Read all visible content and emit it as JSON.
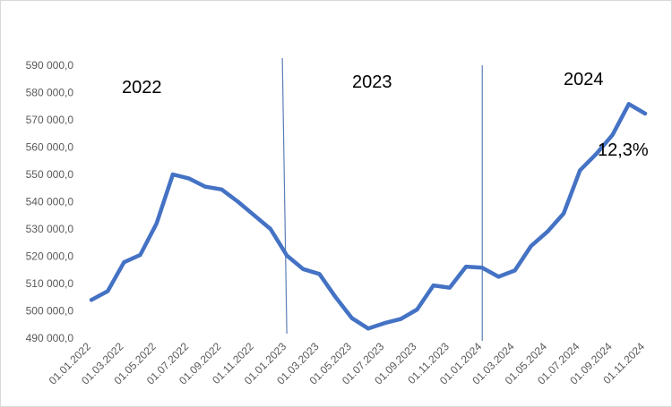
{
  "chart_data": {
    "type": "line",
    "title": "",
    "xlabel": "",
    "ylabel": "",
    "ylim": [
      490000,
      590000
    ],
    "y_ticks": [
      490000,
      500000,
      510000,
      520000,
      530000,
      540000,
      550000,
      560000,
      570000,
      580000,
      590000
    ],
    "y_tick_labels": [
      "490 000,0",
      "500 000,0",
      "510 000,0",
      "520 000,0",
      "530 000,0",
      "540 000,0",
      "550 000,0",
      "560 000,0",
      "570 000,0",
      "580 000,0",
      "590 000,0"
    ],
    "x_tick_labels": [
      "01.01.2022",
      "01.03.2022",
      "01.05.2022",
      "01.07.2022",
      "01.09.2022",
      "01.11.2022",
      "01.01.2023",
      "01.03.2023",
      "01.05.2023",
      "01.07.2023",
      "01.09.2023",
      "01.11.2023",
      "01.01.2024",
      "01.03.2024",
      "01.05.2024",
      "01.07.2024",
      "01.09.2024",
      "01.11.2024"
    ],
    "grid": false,
    "legend": "none",
    "series": [
      {
        "color": "#4472C4",
        "x": [
          "01.01.2022",
          "01.02.2022",
          "01.03.2022",
          "01.04.2022",
          "01.05.2022",
          "01.06.2022",
          "01.07.2022",
          "01.08.2022",
          "01.09.2022",
          "01.10.2022",
          "01.11.2022",
          "01.12.2022",
          "01.01.2023",
          "01.02.2023",
          "01.03.2023",
          "01.04.2023",
          "01.05.2023",
          "01.06.2023",
          "01.07.2023",
          "01.08.2023",
          "01.09.2023",
          "01.10.2023",
          "01.11.2023",
          "01.12.2023",
          "01.01.2024",
          "01.02.2024",
          "01.03.2024",
          "01.04.2024",
          "01.05.2024",
          "01.06.2024",
          "01.07.2024",
          "01.08.2024",
          "01.09.2024",
          "01.10.2024",
          "01.11.2024"
        ],
        "values": [
          504000,
          507200,
          517800,
          520500,
          532000,
          550000,
          548500,
          545500,
          544500,
          540000,
          535000,
          530000,
          520300,
          515300,
          513500,
          505000,
          497300,
          493500,
          495500,
          497000,
          500500,
          509300,
          508500,
          516200,
          515800,
          512500,
          514800,
          523800,
          529000,
          535700,
          551500,
          557500,
          564500,
          575800,
          572300
        ]
      }
    ],
    "separators": [
      "01.01.2023",
      "01.01.2024"
    ],
    "annotations": {
      "year1": "2022",
      "year2": "2023",
      "year3": "2024",
      "change": "12,3%"
    }
  }
}
